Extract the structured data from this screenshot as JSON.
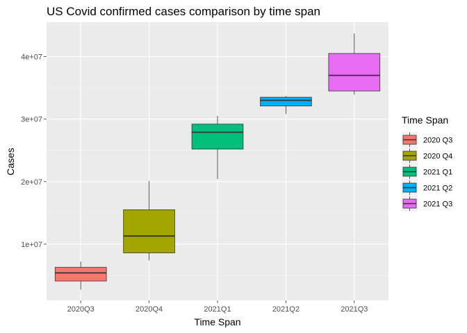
{
  "chart_data": {
    "type": "boxplot",
    "title": "US Covid confirmed cases comparison by time span",
    "xlabel": "Time Span",
    "ylabel": "Cases",
    "ylim": [
      1000000,
      45500000
    ],
    "y_ticks": [
      {
        "value": 10000000,
        "label": "1e+07"
      },
      {
        "value": 20000000,
        "label": "2e+07"
      },
      {
        "value": 30000000,
        "label": "3e+07"
      },
      {
        "value": 40000000,
        "label": "4e+07"
      }
    ],
    "categories": [
      "2020Q3",
      "2020Q4",
      "2021Q1",
      "2021Q2",
      "2021Q3"
    ],
    "grid": true,
    "legend": {
      "title": "Time Span",
      "placement": "right",
      "entries": [
        "2020 Q3",
        "2020 Q4",
        "2021 Q1",
        "2021 Q2",
        "2021 Q3"
      ]
    },
    "boxes": [
      {
        "category": "2020Q3",
        "min": 2700000,
        "q1": 4100000,
        "median": 5400000,
        "q3": 6300000,
        "max": 7200000,
        "color": "#F8766D"
      },
      {
        "category": "2020Q4",
        "min": 7400000,
        "q1": 8600000,
        "median": 11300000,
        "q3": 15500000,
        "max": 20100000,
        "color": "#A3A500"
      },
      {
        "category": "2021Q1",
        "min": 20400000,
        "q1": 25200000,
        "median": 27900000,
        "q3": 29200000,
        "max": 30500000,
        "color": "#00BF7D"
      },
      {
        "category": "2021Q2",
        "min": 30800000,
        "q1": 32100000,
        "median": 33000000,
        "q3": 33500000,
        "max": 33700000,
        "color": "#00B0F6"
      },
      {
        "category": "2021Q3",
        "min": 33900000,
        "q1": 34500000,
        "median": 37000000,
        "q3": 40500000,
        "max": 43700000,
        "color": "#E76BF3"
      }
    ]
  }
}
